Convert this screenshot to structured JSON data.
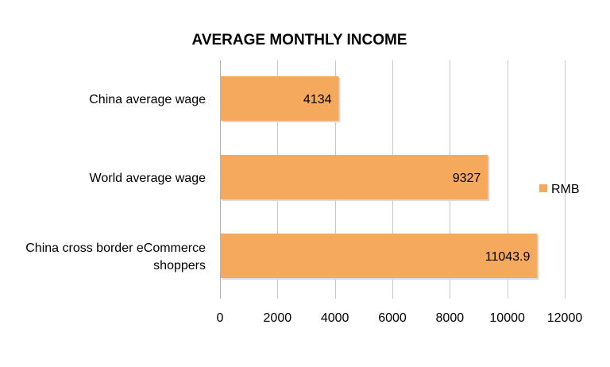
{
  "chart_data": {
    "type": "bar",
    "orientation": "horizontal",
    "title": "AVERAGE MONTHLY INCOME",
    "categories": [
      [
        "China average wage"
      ],
      [
        "World average wage"
      ],
      [
        "China cross border eCommerce",
        "shoppers"
      ]
    ],
    "series": [
      {
        "name": "RMB",
        "values": [
          4134,
          9327,
          11043.9
        ],
        "labels": [
          "4134",
          "9327",
          "11043.9"
        ],
        "color": "#F5A95C"
      }
    ],
    "xlim": [
      0,
      12000
    ],
    "xticks": [
      "0",
      "2000",
      "4000",
      "6000",
      "8000",
      "10000",
      "12000"
    ],
    "xtick_values": [
      0,
      2000,
      4000,
      6000,
      8000,
      10000,
      12000
    ],
    "grid": true,
    "legend": "right"
  }
}
